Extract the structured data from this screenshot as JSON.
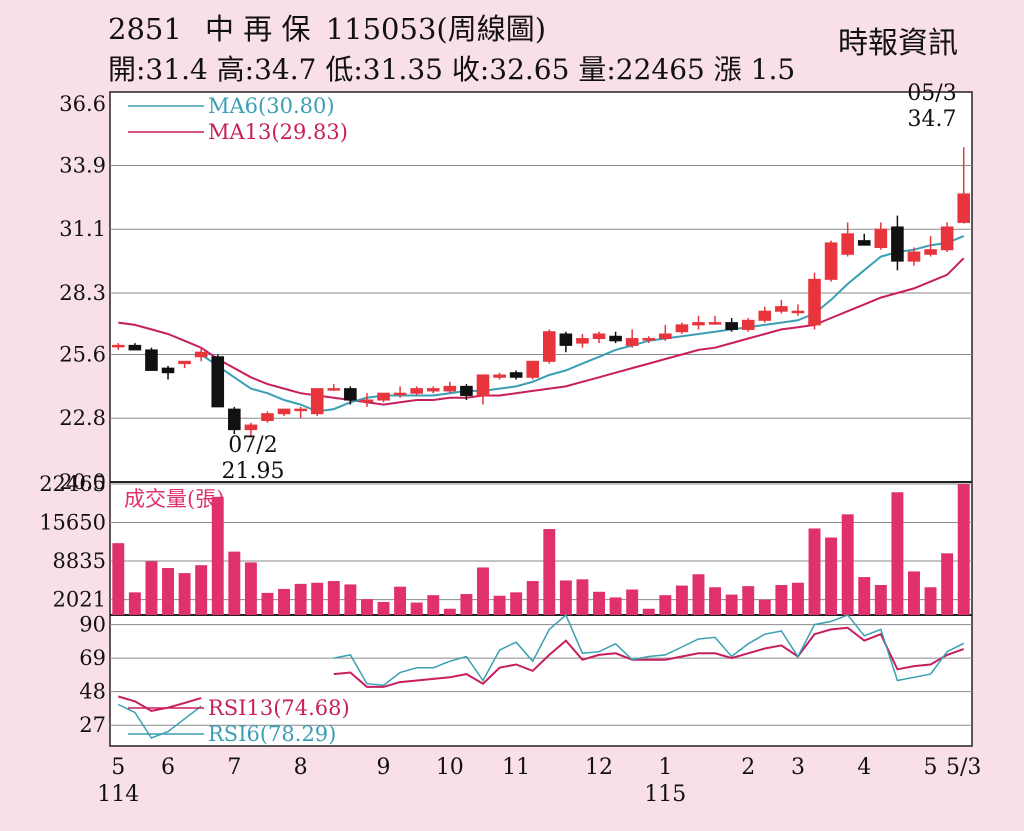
{
  "header": {
    "code": "2851",
    "name": "中 再 保",
    "date_period": "115053(周線圖)",
    "summary": "開:31.4 高:34.7 低:31.35 收:32.65 量:22465 漲 1.5",
    "source": "時報資訊"
  },
  "colors": {
    "up": "#e8343c",
    "down": "#111111",
    "ma6": "#3a9fb4",
    "ma13": "#c81e5e",
    "volume": "#e0306e",
    "rsi13": "#c81e5e",
    "rsi6": "#3a9fb4",
    "grid": "#8a8a8a"
  },
  "chart_data": [
    {
      "type": "candlestick",
      "name": "price",
      "y_ticks": [
        "36.6",
        "33.9",
        "31.1",
        "28.3",
        "25.6",
        "22.8",
        "20.0"
      ],
      "ylim": [
        20.0,
        36.6
      ],
      "legend": [
        {
          "label": "MA6(30.80)",
          "color": "#3a9fb4"
        },
        {
          "label": "MA13(29.83)",
          "color": "#c81e5e"
        }
      ],
      "candles": [
        [
          26.0,
          26.1,
          25.8,
          26.0
        ],
        [
          26.0,
          26.1,
          25.8,
          25.8
        ],
        [
          25.8,
          25.9,
          24.9,
          24.9
        ],
        [
          25.0,
          25.1,
          24.5,
          24.8
        ],
        [
          25.2,
          25.3,
          25.0,
          25.3
        ],
        [
          25.5,
          25.9,
          25.3,
          25.7
        ],
        [
          25.5,
          25.6,
          23.3,
          23.3
        ],
        [
          23.2,
          23.3,
          22.1,
          22.3
        ],
        [
          22.3,
          22.6,
          21.95,
          22.5
        ],
        [
          22.7,
          23.1,
          22.6,
          23.0
        ],
        [
          23.0,
          23.2,
          22.9,
          23.2
        ],
        [
          23.2,
          23.3,
          22.8,
          23.2
        ],
        [
          23.0,
          24.1,
          22.9,
          24.1
        ],
        [
          24.1,
          24.3,
          24.0,
          24.1
        ],
        [
          24.1,
          24.2,
          23.4,
          23.6
        ],
        [
          23.6,
          23.9,
          23.3,
          23.6
        ],
        [
          23.6,
          23.9,
          23.5,
          23.9
        ],
        [
          23.9,
          24.2,
          23.7,
          23.9
        ],
        [
          23.9,
          24.2,
          23.8,
          24.1
        ],
        [
          24.0,
          24.2,
          23.9,
          24.1
        ],
        [
          24.0,
          24.4,
          23.9,
          24.2
        ],
        [
          24.2,
          24.3,
          23.6,
          23.8
        ],
        [
          23.8,
          24.7,
          23.4,
          24.7
        ],
        [
          24.6,
          24.8,
          24.5,
          24.7
        ],
        [
          24.8,
          24.9,
          24.5,
          24.6
        ],
        [
          24.6,
          25.3,
          24.5,
          25.3
        ],
        [
          25.3,
          26.7,
          25.2,
          26.6
        ],
        [
          26.5,
          26.6,
          25.7,
          26.0
        ],
        [
          26.1,
          26.5,
          25.9,
          26.3
        ],
        [
          26.3,
          26.6,
          26.1,
          26.5
        ],
        [
          26.4,
          26.6,
          26.1,
          26.2
        ],
        [
          26.0,
          26.7,
          25.9,
          26.3
        ],
        [
          26.3,
          26.4,
          26.1,
          26.3
        ],
        [
          26.3,
          26.9,
          26.2,
          26.5
        ],
        [
          26.6,
          27.0,
          26.5,
          26.9
        ],
        [
          26.9,
          27.3,
          26.7,
          27.0
        ],
        [
          27.0,
          27.3,
          26.9,
          27.0
        ],
        [
          27.0,
          27.2,
          26.6,
          26.7
        ],
        [
          26.7,
          27.2,
          26.6,
          27.1
        ],
        [
          27.1,
          27.7,
          27.0,
          27.5
        ],
        [
          27.5,
          28.0,
          27.4,
          27.7
        ],
        [
          27.5,
          27.8,
          27.3,
          27.5
        ],
        [
          26.9,
          29.2,
          26.7,
          28.9
        ],
        [
          28.9,
          30.6,
          28.8,
          30.5
        ],
        [
          30.0,
          31.4,
          29.9,
          30.9
        ],
        [
          30.6,
          30.9,
          30.4,
          30.4
        ],
        [
          30.3,
          31.4,
          30.2,
          31.1
        ],
        [
          31.2,
          31.7,
          29.3,
          29.7
        ],
        [
          29.7,
          30.3,
          29.5,
          30.1
        ],
        [
          30.0,
          30.8,
          29.9,
          30.2
        ],
        [
          30.2,
          31.4,
          30.1,
          31.2
        ],
        [
          31.4,
          34.7,
          31.35,
          32.65
        ]
      ],
      "ma6": [
        null,
        null,
        null,
        null,
        null,
        25.6,
        25.1,
        24.6,
        24.1,
        23.9,
        23.6,
        23.4,
        23.1,
        23.2,
        23.5,
        23.7,
        23.8,
        23.8,
        23.8,
        23.8,
        23.9,
        24.0,
        24.0,
        24.1,
        24.2,
        24.4,
        24.7,
        24.9,
        25.2,
        25.5,
        25.8,
        26.0,
        26.2,
        26.3,
        26.4,
        26.5,
        26.6,
        26.7,
        26.8,
        26.9,
        27.0,
        27.1,
        27.4,
        28.0,
        28.7,
        29.3,
        29.9,
        30.1,
        30.2,
        30.4,
        30.5,
        30.8
      ],
      "ma13": [
        27.0,
        26.9,
        26.7,
        26.5,
        26.2,
        25.9,
        25.4,
        25.0,
        24.6,
        24.3,
        24.1,
        23.9,
        23.8,
        23.7,
        23.6,
        23.5,
        23.4,
        23.5,
        23.6,
        23.6,
        23.7,
        23.7,
        23.8,
        23.8,
        23.9,
        24.0,
        24.1,
        24.2,
        24.4,
        24.6,
        24.8,
        25.0,
        25.2,
        25.4,
        25.6,
        25.8,
        25.9,
        26.1,
        26.3,
        26.5,
        26.7,
        26.8,
        26.9,
        27.2,
        27.5,
        27.8,
        28.1,
        28.3,
        28.5,
        28.8,
        29.1,
        29.83
      ],
      "annotations": [
        {
          "date": "07/2",
          "value": "21.95",
          "type": "low"
        },
        {
          "date": "05/3",
          "value": "34.7",
          "type": "high"
        }
      ]
    },
    {
      "type": "bar",
      "name": "volume",
      "title": "成交量(張)",
      "y_ticks": [
        "22465",
        "15650",
        "8835",
        "2021"
      ],
      "ylim": [
        0,
        22465
      ],
      "values": [
        12000,
        3300,
        8800,
        7600,
        6700,
        8100,
        20200,
        10500,
        8600,
        3200,
        3900,
        4800,
        5000,
        5300,
        4700,
        2100,
        1600,
        4300,
        1500,
        2800,
        400,
        3000,
        7700,
        2700,
        3300,
        5300,
        14500,
        5400,
        5600,
        3400,
        2400,
        3800,
        400,
        2800,
        4500,
        6500,
        4200,
        2900,
        4400,
        2000,
        4600,
        5000,
        14600,
        13000,
        17100,
        6000,
        4600,
        21000,
        7000,
        4200,
        10200,
        22465
      ]
    },
    {
      "type": "line",
      "name": "rsi",
      "y_ticks": [
        "90",
        "69",
        "48",
        "27"
      ],
      "ylim": [
        14,
        96
      ],
      "legend": [
        {
          "label": "RSI13(74.68)",
          "color": "#c81e5e"
        },
        {
          "label": "RSI6(78.29)",
          "color": "#3a9fb4"
        }
      ],
      "rsi13": [
        45,
        42,
        36,
        38,
        41,
        44,
        null,
        null,
        null,
        null,
        null,
        null,
        null,
        59,
        60,
        51,
        51,
        54,
        55,
        56,
        57,
        59,
        53,
        63,
        65,
        61,
        71,
        80,
        68,
        71,
        72,
        68,
        68,
        68,
        70,
        72,
        72,
        69,
        72,
        75,
        77,
        70,
        84,
        87,
        88,
        80,
        84,
        62,
        64,
        65,
        71,
        74.68
      ],
      "rsi6": [
        40,
        35,
        19,
        23,
        31,
        39,
        null,
        null,
        null,
        null,
        null,
        null,
        null,
        69,
        71,
        53,
        52,
        60,
        63,
        63,
        67,
        70,
        55,
        74,
        79,
        67,
        87,
        96,
        72,
        73,
        78,
        68,
        70,
        71,
        76,
        81,
        82,
        70,
        78,
        84,
        86,
        70,
        90,
        92,
        96,
        83,
        87,
        55,
        57,
        59,
        73,
        78.29
      ]
    }
  ],
  "x_axis": {
    "month_labels": [
      {
        "label": "5",
        "index": 0
      },
      {
        "label": "6",
        "index": 3
      },
      {
        "label": "7",
        "index": 7
      },
      {
        "label": "8",
        "index": 11
      },
      {
        "label": "9",
        "index": 16
      },
      {
        "label": "10",
        "index": 20
      },
      {
        "label": "11",
        "index": 24
      },
      {
        "label": "12",
        "index": 29
      },
      {
        "label": "1",
        "index": 33
      },
      {
        "label": "2",
        "index": 38
      },
      {
        "label": "3",
        "index": 41
      },
      {
        "label": "4",
        "index": 45
      },
      {
        "label": "5",
        "index": 49
      },
      {
        "label": "5/3",
        "index": 51
      }
    ],
    "year_labels": [
      {
        "label": "114",
        "index": 0
      },
      {
        "label": "115",
        "index": 33
      }
    ]
  }
}
